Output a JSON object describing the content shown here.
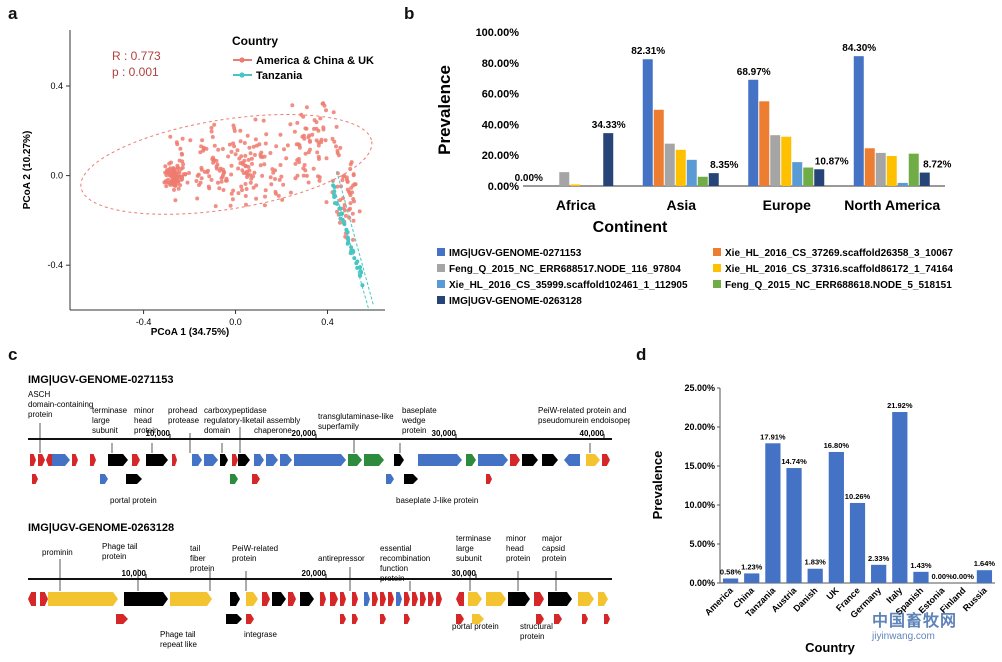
{
  "panels": {
    "a": "a",
    "b": "b",
    "c": "c",
    "d": "d"
  },
  "panel_a": {
    "stats": {
      "r": "R : 0.773",
      "p": "p : 0.001"
    },
    "legend_title": "Country",
    "legend_items": [
      {
        "label": "America & China & UK",
        "color": "#ee7b70"
      },
      {
        "label": "Tanzania",
        "color": "#48c5c5"
      }
    ]
  },
  "panel_c": {
    "genome1": {
      "title": "IMG|UGV-GENOME-0271153",
      "ruler_ticks": [
        "10,000",
        "20,000",
        "30,000",
        "40,000"
      ],
      "labels_above": [
        "ASCH domain-containing protein",
        "terminase large subunit",
        "minor head protein",
        "prohead protease",
        "carboxypeptidase regulatory-like domain",
        "tail assembly chaperone",
        "transglutaminase-like superfamily",
        "baseplate wedge protein",
        "PeiW-related protein and pseudomurein endoisopeptidase Pei"
      ],
      "labels_below": [
        "portal protein",
        "baseplate J-like protein"
      ]
    },
    "genome2": {
      "title": "IMG|UGV-GENOME-0263128",
      "ruler_ticks": [
        "10,000",
        "20,000",
        "30,000"
      ],
      "labels_above": [
        "prominin",
        "Phage tail protein",
        "tail fiber protein",
        "PeiW-related protein",
        "antirepressor",
        "essential recombination function protein",
        "terminase large subunit",
        "minor head protein",
        "major capsid protein"
      ],
      "labels_below": [
        "Phage tail repeat like",
        "integrase",
        "portal protein",
        "structural protein"
      ]
    }
  },
  "chart_data": [
    {
      "type": "scatter",
      "panel": "a",
      "xlabel": "PCoA 1 (34.75%)",
      "ylabel": "PCoA 2 (10.27%)",
      "xticks": [
        -0.4,
        0.0,
        0.4
      ],
      "yticks": [
        -0.4,
        0.0,
        0.4
      ],
      "xlim": [
        -0.72,
        0.65
      ],
      "ylim": [
        -0.6,
        0.65
      ],
      "series": [
        {
          "name": "America & China & UK",
          "color": "#ee7b70",
          "ellipse": {
            "cx": -0.04,
            "cy": 0.05,
            "rx": 0.64,
            "ry": 0.2
          }
        },
        {
          "name": "Tanzania",
          "color": "#48c5c5"
        }
      ]
    },
    {
      "type": "bar",
      "panel": "b",
      "title": "",
      "xlabel": "Continent",
      "ylabel": "Prevalence",
      "ylim": [
        0,
        100
      ],
      "yticks": [
        "0.00%",
        "20.00%",
        "40.00%",
        "60.00%",
        "80.00%",
        "100.00%"
      ],
      "categories": [
        "Africa",
        "Asia",
        "Europe",
        "North America"
      ],
      "series": [
        {
          "name": "IMG|UGV-GENOME-0271153",
          "color": "#4472c4",
          "values": [
            0.0,
            82.31,
            68.97,
            84.3
          ]
        },
        {
          "name": "Xie_HL_2016_CS_37269.scaffold26358_3_10067",
          "color": "#ed7d31",
          "values": [
            0.0,
            49.5,
            55.0,
            24.5
          ]
        },
        {
          "name": "Feng_Q_2015_NC_ERR688517.NODE_116_97804",
          "color": "#a5a5a5",
          "values": [
            9.0,
            27.5,
            33.0,
            21.5
          ]
        },
        {
          "name": "Xie_HL_2016_CS_37316.scaffold86172_1_74164",
          "color": "#ffc000",
          "values": [
            1.0,
            23.5,
            32.0,
            19.5
          ]
        },
        {
          "name": "Xie_HL_2016_CS_35999.scaffold102461_1_112905",
          "color": "#5b9bd5",
          "values": [
            0.0,
            17.0,
            15.5,
            2.0
          ]
        },
        {
          "name": "Feng_Q_2015_NC_ERR688618.NODE_5_518151",
          "color": "#70ad47",
          "values": [
            0.0,
            6.0,
            12.0,
            21.0
          ]
        },
        {
          "name": "IMG|UGV-GENOME-0263128",
          "color": "#264478",
          "values": [
            34.33,
            8.35,
            10.87,
            8.72
          ]
        }
      ],
      "data_labels": [
        "0.00%",
        "82.31%",
        "34.33%",
        "8.35%",
        "68.97%",
        "10.87%",
        "84.30%",
        "8.72%"
      ]
    },
    {
      "type": "bar",
      "panel": "d",
      "xlabel": "Country",
      "ylabel": "Prevalence",
      "ylim": [
        0,
        25
      ],
      "yticks": [
        "0.00%",
        "5.00%",
        "10.00%",
        "15.00%",
        "20.00%",
        "25.00%"
      ],
      "categories": [
        "America",
        "China",
        "Tanzania",
        "Austria",
        "Danish",
        "UK",
        "France",
        "Germany",
        "Italy",
        "Spanish",
        "Estonia",
        "Finland",
        "Russia"
      ],
      "values": [
        0.58,
        1.23,
        17.91,
        14.74,
        1.83,
        16.8,
        10.26,
        2.33,
        21.92,
        1.43,
        0.0,
        0.0,
        1.64
      ],
      "value_labels": [
        "0.58%",
        "1.23%",
        "17.91%",
        "14.74%",
        "1.83%",
        "16.80%",
        "10.26%",
        "2.33%",
        "21.92%",
        "1.43%",
        "0.00%",
        "0.00%",
        "1.64%"
      ],
      "color": "#4472c4"
    }
  ],
  "watermark": {
    "line1": "中国畜牧网",
    "line2": "jiyinwang.com"
  }
}
